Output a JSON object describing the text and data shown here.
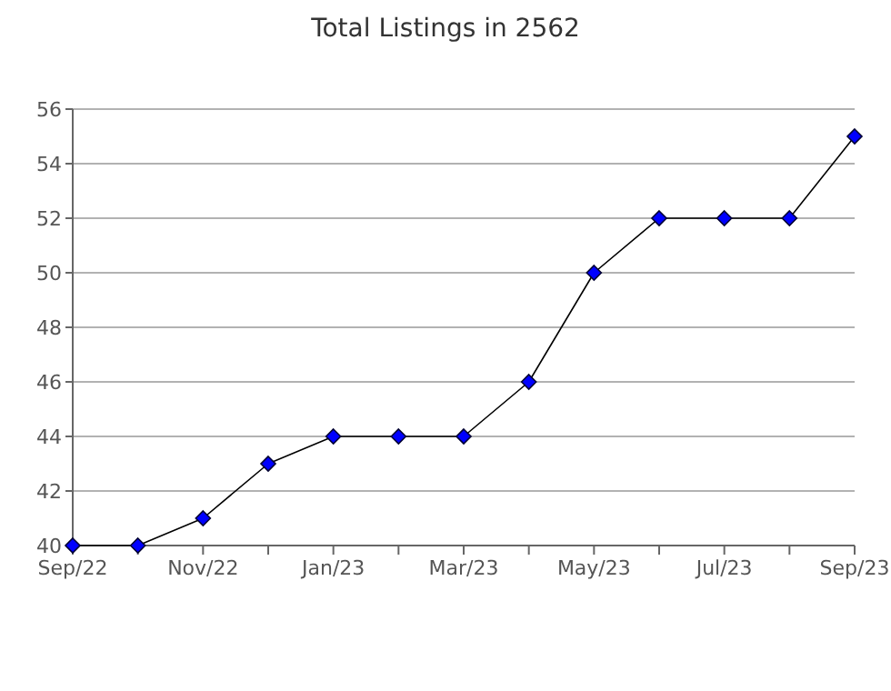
{
  "chart_data": {
    "type": "line",
    "title": "Total Listings in 2562",
    "categories": [
      "Sep/22",
      null,
      "Nov/22",
      null,
      "Jan/23",
      null,
      "Mar/23",
      null,
      "May/23",
      null,
      "Jul/23",
      null,
      "Sep/23"
    ],
    "series": [
      {
        "color": "#0000ff",
        "values": [
          40,
          40,
          41,
          43,
          44,
          44,
          44,
          46,
          50,
          52,
          52,
          52,
          55
        ]
      }
    ],
    "ylim": [
      40,
      56
    ],
    "yticks": [
      40,
      42,
      44,
      46,
      48,
      50,
      52,
      54,
      56
    ],
    "grid": "y",
    "marker": "diamond",
    "line_style": "solid"
  }
}
